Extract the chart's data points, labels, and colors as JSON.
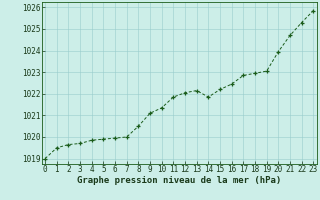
{
  "x": [
    0,
    1,
    2,
    3,
    4,
    5,
    6,
    7,
    8,
    9,
    10,
    11,
    12,
    13,
    14,
    15,
    16,
    17,
    18,
    19,
    20,
    21,
    22,
    23
  ],
  "y": [
    1019.0,
    1019.5,
    1019.65,
    1019.7,
    1019.85,
    1019.9,
    1019.95,
    1020.0,
    1020.5,
    1021.1,
    1021.35,
    1021.85,
    1022.05,
    1022.15,
    1021.85,
    1022.2,
    1022.45,
    1022.85,
    1022.95,
    1023.05,
    1023.95,
    1024.7,
    1025.3,
    1025.85
  ],
  "line_color": "#1a5c1a",
  "marker": "+",
  "bg_color": "#cceee8",
  "plot_bg_color": "#cceee8",
  "grid_color": "#99cccc",
  "xlabel": "Graphe pression niveau de la mer (hPa)",
  "xlabel_color": "#1a3a1a",
  "xlabel_fontsize": 6.5,
  "tick_fontsize": 5.5,
  "ylim": [
    1018.75,
    1026.25
  ],
  "yticks": [
    1019,
    1020,
    1021,
    1022,
    1023,
    1024,
    1025,
    1026
  ],
  "xticks": [
    0,
    1,
    2,
    3,
    4,
    5,
    6,
    7,
    8,
    9,
    10,
    11,
    12,
    13,
    14,
    15,
    16,
    17,
    18,
    19,
    20,
    21,
    22,
    23
  ],
  "linewidth": 0.7,
  "markersize": 3.5,
  "markeredgewidth": 0.9
}
